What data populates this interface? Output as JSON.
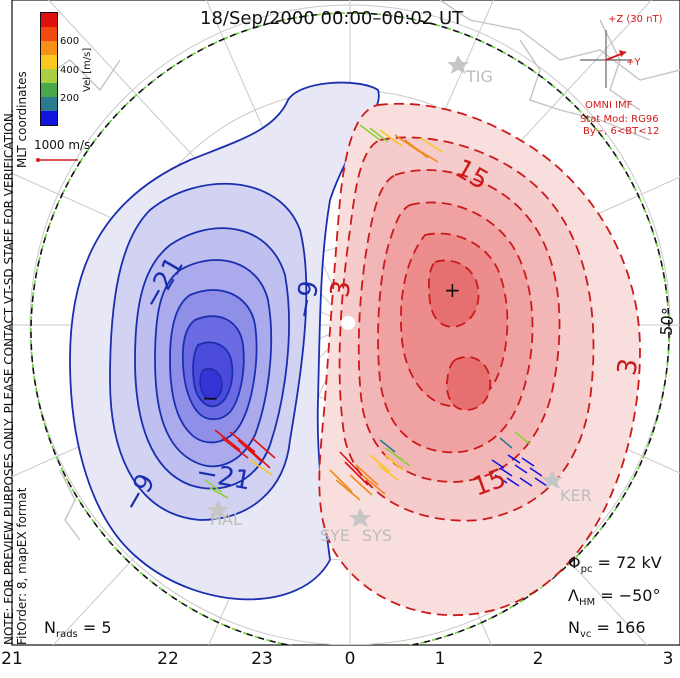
{
  "header": {
    "title": "18/Sep/2000 00:00–00:02 UT"
  },
  "left_margin": {
    "notice_line1": "NOTE: FOR PREVIEW PURPOSES ONLY. PLEASE CONTACT VT-SD STAFF FOR VERIFICATION.",
    "notice_line2": "FitOrder: 8, mapEX format",
    "coords": "MLT coordinates"
  },
  "velocity_scale": {
    "title": "Vel [m/s]",
    "ticks": [
      "600",
      "400",
      "200"
    ],
    "colors": [
      "#e01010",
      "#f04a10",
      "#f8901a",
      "#f8c820",
      "#a8d040",
      "#4aa84a",
      "#2a7a90",
      "#1414e0"
    ],
    "reference": "1000 m/s"
  },
  "imf": {
    "z_label": "+Z (30 nT)",
    "y_label": "+Y",
    "source": "OMNI IMF",
    "model": "Stat Mod: RG96",
    "condition": "By−, 6<BT<12"
  },
  "stations": [
    "TIG",
    "HAL",
    "SYE",
    "SYS",
    "KER"
  ],
  "contours": {
    "neg_labels": [
      "−21",
      "−9",
      "−9",
      "−21"
    ],
    "pos_labels": [
      "3",
      "15",
      "15",
      "3"
    ],
    "min_marker": "−",
    "max_marker": "+"
  },
  "lat_label": "50°",
  "stats": {
    "phi_sym": "Φ",
    "phi_sub": "pc",
    "phi_value": "= 72 kV",
    "lambda_sym": "Λ",
    "lambda_sub": "HM",
    "lambda_value": "= −50°",
    "nvc_sym": "N",
    "nvc_sub": "vc",
    "nvc_value": "= 166",
    "nrads_sym": "N",
    "nrads_sub": "rads",
    "nrads_value": "= 5"
  },
  "mlt_axis": [
    "21",
    "22",
    "23",
    "0",
    "1",
    "2",
    "3"
  ],
  "colors": {
    "negative": "#2323c8",
    "positive": "#cc1a1a",
    "boundary": "#6bd03a"
  }
}
